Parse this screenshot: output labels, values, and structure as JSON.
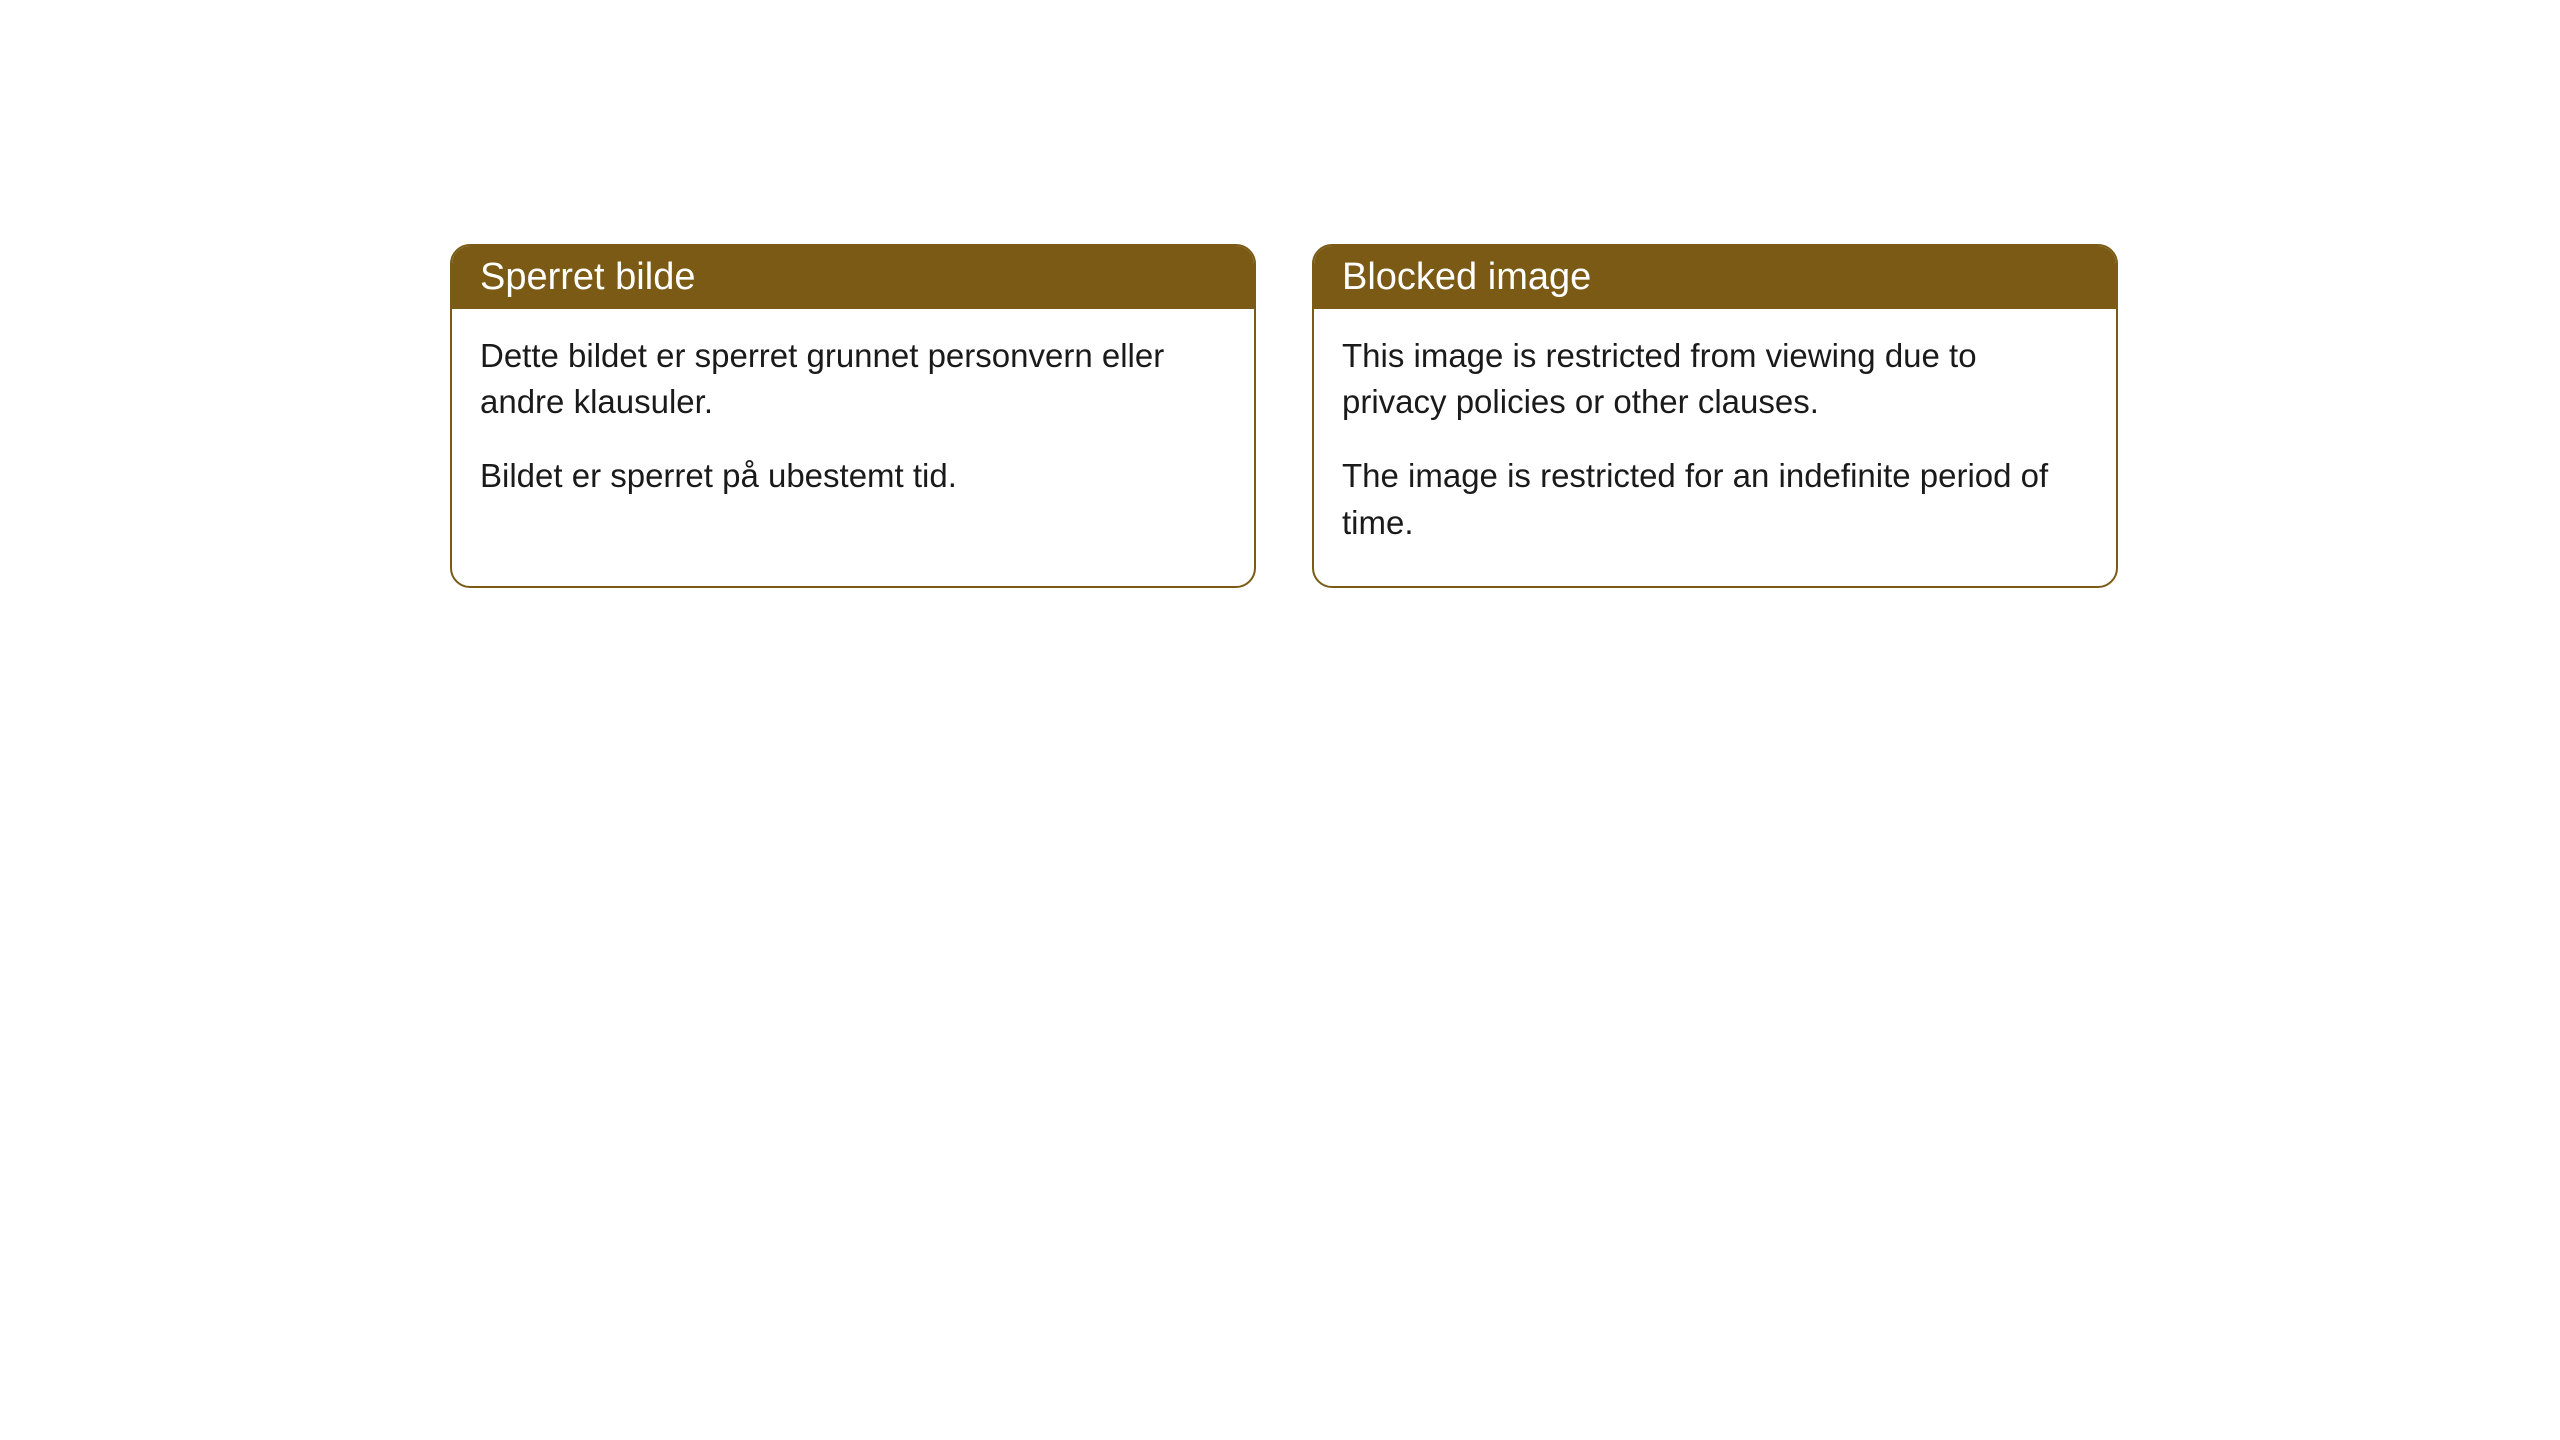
{
  "cards": [
    {
      "title": "Sperret bilde",
      "paragraph1": "Dette bildet er sperret grunnet personvern eller andre klausuler.",
      "paragraph2": "Bildet er sperret på ubestemt tid."
    },
    {
      "title": "Blocked image",
      "paragraph1": "This image is restricted from viewing due to privacy policies or other clauses.",
      "paragraph2": "The image is restricted for an indefinite period of time."
    }
  ],
  "colors": {
    "header_bg": "#7a5a14",
    "header_text": "#ffffff",
    "border": "#7a5a14",
    "body_bg": "#ffffff",
    "body_text": "#1a1a1a"
  }
}
